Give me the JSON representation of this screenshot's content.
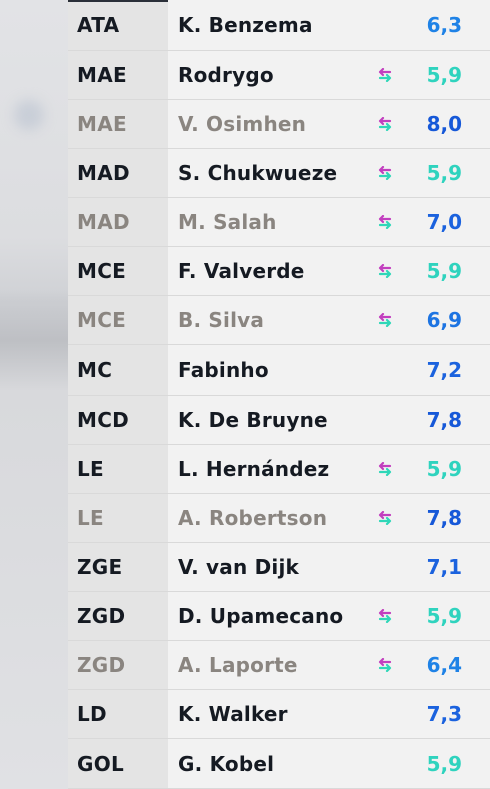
{
  "colors": {
    "rating_blue": "#1b6ee0",
    "rating_teal": "#2fd7c2",
    "rating_cyan": "#2f8fe6",
    "swap_magenta": "#c23fbf",
    "swap_green": "#2fd7b8"
  },
  "lineup": [
    {
      "position": "ATA",
      "name": "K. Benzema",
      "rating": "6,3",
      "rating_color": "#1f82e6",
      "swap_icon": false,
      "substitute": false
    },
    {
      "position": "MAE",
      "name": "Rodrygo",
      "rating": "5,9",
      "rating_color": "#2fd3be",
      "swap_icon": true,
      "substitute": false
    },
    {
      "position": "MAE",
      "name": "V. Osimhen",
      "rating": "8,0",
      "rating_color": "#1658d8",
      "swap_icon": true,
      "substitute": true
    },
    {
      "position": "MAD",
      "name": "S. Chukwueze",
      "rating": "5,9",
      "rating_color": "#2fd3be",
      "swap_icon": true,
      "substitute": false
    },
    {
      "position": "MAD",
      "name": "M. Salah",
      "rating": "7,0",
      "rating_color": "#1b62de",
      "swap_icon": true,
      "substitute": true
    },
    {
      "position": "MCE",
      "name": "F. Valverde",
      "rating": "5,9",
      "rating_color": "#2fd3be",
      "swap_icon": true,
      "substitute": false
    },
    {
      "position": "MCE",
      "name": "B. Silva",
      "rating": "6,9",
      "rating_color": "#1d74e2",
      "swap_icon": true,
      "substitute": true
    },
    {
      "position": "MC",
      "name": "Fabinho",
      "rating": "7,2",
      "rating_color": "#1b62de",
      "swap_icon": false,
      "substitute": false
    },
    {
      "position": "MCD",
      "name": "K. De Bruyne",
      "rating": "7,8",
      "rating_color": "#1658d8",
      "swap_icon": false,
      "substitute": false
    },
    {
      "position": "LE",
      "name": "L. Hernández",
      "rating": "5,9",
      "rating_color": "#2fd3be",
      "swap_icon": true,
      "substitute": false
    },
    {
      "position": "LE",
      "name": "A. Robertson",
      "rating": "7,8",
      "rating_color": "#1658d8",
      "swap_icon": true,
      "substitute": true
    },
    {
      "position": "ZGE",
      "name": "V. van Dijk",
      "rating": "7,1",
      "rating_color": "#1b62de",
      "swap_icon": false,
      "substitute": false
    },
    {
      "position": "ZGD",
      "name": "D. Upamecano",
      "rating": "5,9",
      "rating_color": "#2fd3be",
      "swap_icon": true,
      "substitute": false
    },
    {
      "position": "ZGD",
      "name": "A. Laporte",
      "rating": "6,4",
      "rating_color": "#1f82e6",
      "swap_icon": true,
      "substitute": true
    },
    {
      "position": "LD",
      "name": "K. Walker",
      "rating": "7,3",
      "rating_color": "#1b62de",
      "swap_icon": false,
      "substitute": false
    },
    {
      "position": "GOL",
      "name": "G. Kobel",
      "rating": "5,9",
      "rating_color": "#2fd3be",
      "swap_icon": false,
      "substitute": false
    }
  ]
}
